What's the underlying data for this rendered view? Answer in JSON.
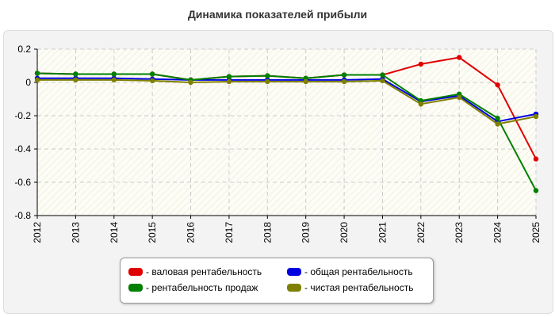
{
  "chart_data": {
    "type": "line",
    "title": "Динамика показателей прибыли",
    "x": [
      "2012",
      "2013",
      "2014",
      "2015",
      "2016",
      "2017",
      "2018",
      "2019",
      "2020",
      "2021",
      "2022",
      "2023",
      "2024",
      "2025"
    ],
    "ylim": [
      -0.8,
      0.2
    ],
    "yticks": [
      "0.2",
      "0",
      "-0.2",
      "-0.4",
      "-0.6",
      "-0.8"
    ],
    "ytick_values": [
      0.2,
      0,
      -0.2,
      -0.4,
      -0.6,
      -0.8
    ],
    "grid": true,
    "legend_position": "bottom",
    "series": [
      {
        "name": "- валовая рентабельность",
        "color": "#e00000",
        "values": [
          0.055,
          0.05,
          0.05,
          0.05,
          0.015,
          0.035,
          0.04,
          0.025,
          0.045,
          0.045,
          0.11,
          0.15,
          -0.015,
          -0.46
        ]
      },
      {
        "name": "- общая рентабельность",
        "color": "#0000e0",
        "values": [
          0.025,
          0.025,
          0.025,
          0.02,
          0.015,
          0.015,
          0.015,
          0.015,
          0.015,
          0.02,
          -0.115,
          -0.08,
          -0.235,
          -0.19
        ]
      },
      {
        "name": "- рентабельность продаж",
        "color": "#008000",
        "values": [
          0.055,
          0.05,
          0.05,
          0.05,
          0.015,
          0.035,
          0.04,
          0.025,
          0.045,
          0.045,
          -0.11,
          -0.07,
          -0.215,
          -0.65
        ]
      },
      {
        "name": "- чистая рентабельность",
        "color": "#808000",
        "values": [
          0.015,
          0.015,
          0.015,
          0.01,
          0.0,
          0.005,
          0.005,
          0.005,
          0.005,
          0.01,
          -0.13,
          -0.09,
          -0.25,
          -0.205
        ]
      }
    ]
  }
}
